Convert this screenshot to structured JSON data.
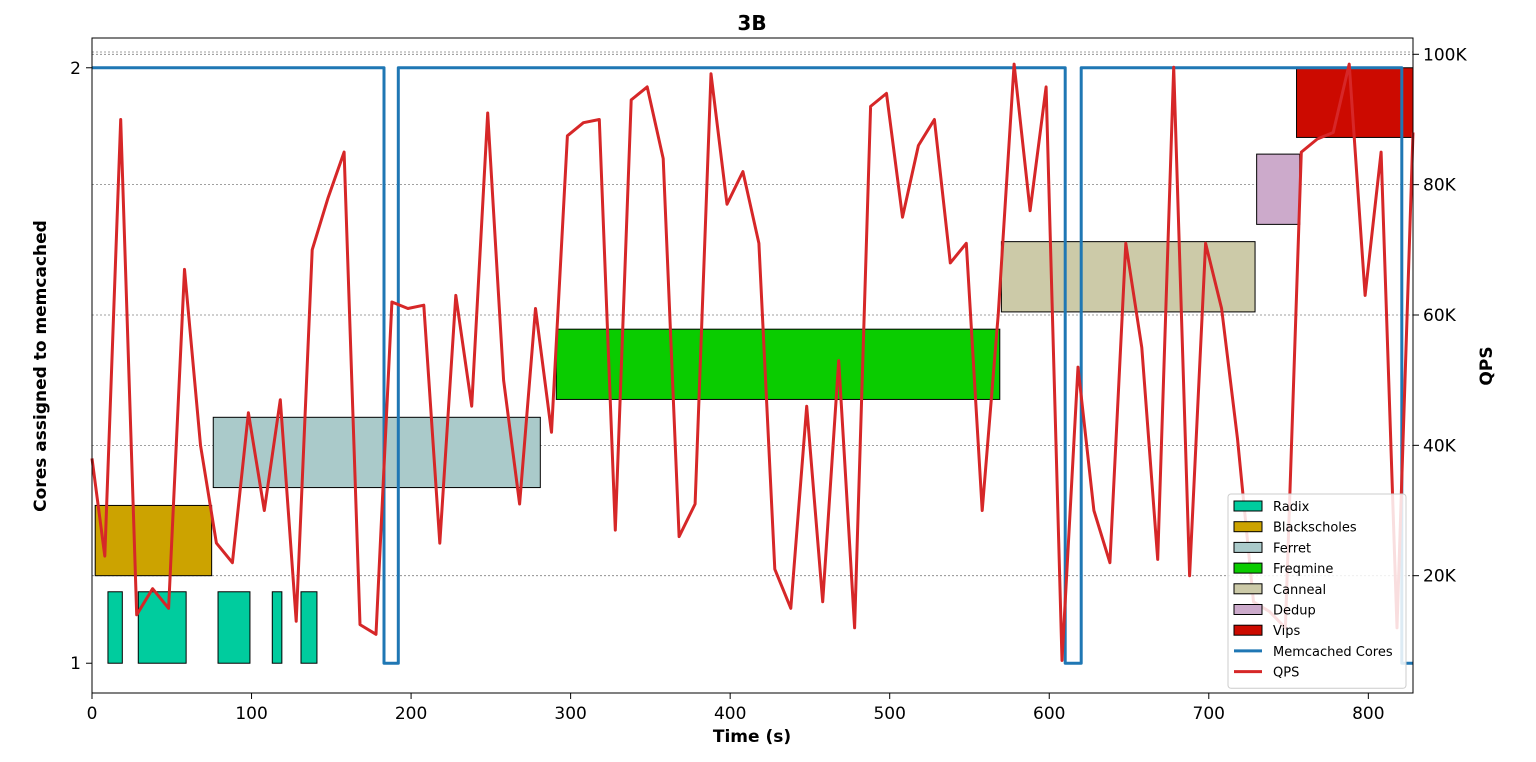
{
  "chart_data": {
    "type": "line",
    "title": "3B",
    "xlabel": "Time (s)",
    "ylabel_left": "Cores assigned to memcached",
    "ylabel_right": "QPS",
    "xlim": [
      0,
      828
    ],
    "ylim_left": [
      0.95,
      2.05
    ],
    "ylim_right": [
      2000,
      102500
    ],
    "xticks": [
      0,
      100,
      200,
      300,
      400,
      500,
      600,
      700,
      800
    ],
    "xtick_labels": [
      "0",
      "100",
      "200",
      "300",
      "400",
      "500",
      "600",
      "700",
      "800"
    ],
    "yticks_left": [
      1,
      2
    ],
    "ytick_labels_left": [
      "1",
      "2"
    ],
    "yticks_right": [
      20000,
      40000,
      60000,
      80000,
      100000
    ],
    "ytick_labels_right": [
      "20K",
      "40K",
      "60K",
      "80K",
      "100K"
    ],
    "grid": "horizontal-dashed",
    "legend_position": "lower-right",
    "jobs": [
      {
        "name": "Radix",
        "color": "#00cc9e",
        "intervals": [
          [
            10,
            19
          ],
          [
            29,
            59
          ],
          [
            79,
            99
          ],
          [
            113,
            119
          ],
          [
            131,
            141
          ]
        ],
        "row": [
          1.0,
          1.12
        ]
      },
      {
        "name": "Blackscholes",
        "color": "#cca300",
        "intervals": [
          [
            2,
            75
          ]
        ],
        "row": [
          1.147,
          1.265
        ]
      },
      {
        "name": "Ferret",
        "color": "#aacaca",
        "intervals": [
          [
            76,
            281
          ]
        ],
        "row": [
          1.295,
          1.413
        ]
      },
      {
        "name": "Freqmine",
        "color": "#0acc00",
        "intervals": [
          [
            291,
            569
          ]
        ],
        "row": [
          1.443,
          1.561
        ]
      },
      {
        "name": "Canneal",
        "color": "#cccaa8",
        "intervals": [
          [
            570,
            729
          ]
        ],
        "row": [
          1.59,
          1.708
        ]
      },
      {
        "name": "Dedup",
        "color": "#ccaacb",
        "intervals": [
          [
            730,
            757
          ]
        ],
        "row": [
          1.737,
          1.855
        ]
      },
      {
        "name": "Vips",
        "color": "#cc0a00",
        "intervals": [
          [
            755,
            830
          ]
        ],
        "row": [
          1.883,
          2.0
        ]
      }
    ],
    "series": [
      {
        "name": "Memcached Cores",
        "color": "#1f77b4",
        "axis": "left",
        "x": [
          0,
          183,
          183,
          192,
          192,
          610,
          610,
          620,
          620,
          821,
          821,
          828
        ],
        "y": [
          2,
          2,
          1,
          1,
          2,
          2,
          1,
          1,
          2,
          2,
          1,
          1
        ]
      },
      {
        "name": "QPS",
        "color": "#d62728",
        "axis": "right",
        "x": [
          0,
          8,
          18,
          28,
          38,
          48,
          58,
          68,
          78,
          88,
          98,
          108,
          118,
          128,
          138,
          148,
          158,
          168,
          178,
          188,
          198,
          208,
          218,
          228,
          238,
          248,
          258,
          268,
          278,
          288,
          298,
          308,
          318,
          328,
          338,
          348,
          358,
          368,
          378,
          388,
          398,
          408,
          418,
          428,
          438,
          448,
          458,
          468,
          478,
          488,
          498,
          508,
          518,
          528,
          538,
          548,
          558,
          568,
          578,
          588,
          598,
          608,
          618,
          628,
          638,
          648,
          658,
          668,
          678,
          688,
          698,
          708,
          718,
          728,
          738,
          748,
          758,
          768,
          778,
          788,
          798,
          808,
          818,
          828
        ],
        "y": [
          38000,
          23000,
          90000,
          14000,
          18000,
          15000,
          67000,
          40000,
          25000,
          22000,
          45000,
          30000,
          47000,
          13000,
          70000,
          78000,
          85000,
          12500,
          11000,
          62000,
          61000,
          61500,
          25000,
          63000,
          46000,
          91000,
          50000,
          31000,
          61000,
          42000,
          87500,
          89500,
          90000,
          27000,
          93000,
          95000,
          84000,
          26000,
          31000,
          97000,
          77000,
          82000,
          71000,
          21000,
          15000,
          46000,
          16000,
          53000,
          12000,
          92000,
          94000,
          75000,
          86000,
          90000,
          68000,
          71000,
          30000,
          60000,
          98500,
          76000,
          95000,
          7000,
          52000,
          30000,
          22000,
          71000,
          55000,
          22500,
          98000,
          20000,
          71000,
          61000,
          41000,
          16000,
          14500,
          12000,
          85000,
          87000,
          88000,
          98500,
          63000,
          85000,
          12000,
          88000
        ]
      }
    ]
  }
}
